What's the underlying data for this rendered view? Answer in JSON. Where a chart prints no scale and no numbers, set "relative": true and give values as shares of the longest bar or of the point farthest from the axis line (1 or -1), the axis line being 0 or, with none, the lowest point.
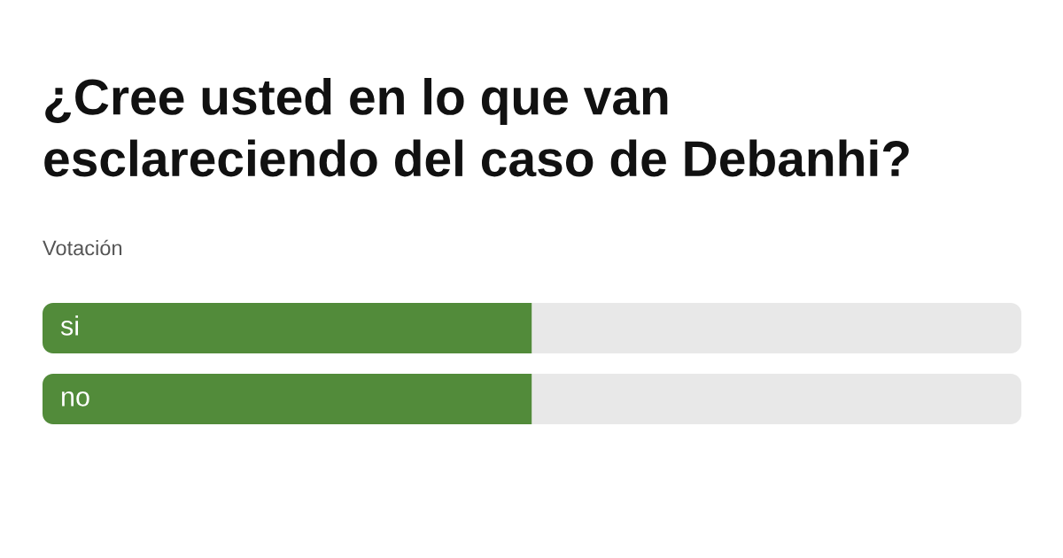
{
  "chart_data": {
    "type": "bar",
    "orientation": "horizontal",
    "stacked": true,
    "relative": true,
    "title": "¿Cree usted en lo que van esclareciendo del caso de Debanhi?",
    "subtitle": "Votación",
    "categories": [
      "si",
      "no"
    ],
    "series": [
      {
        "color": "#528b3a",
        "values": [
          0.5,
          0.5
        ]
      },
      {
        "color": "#e8e8e8",
        "values": [
          0.5,
          0.5
        ]
      }
    ],
    "tick_labels": "y"
  }
}
